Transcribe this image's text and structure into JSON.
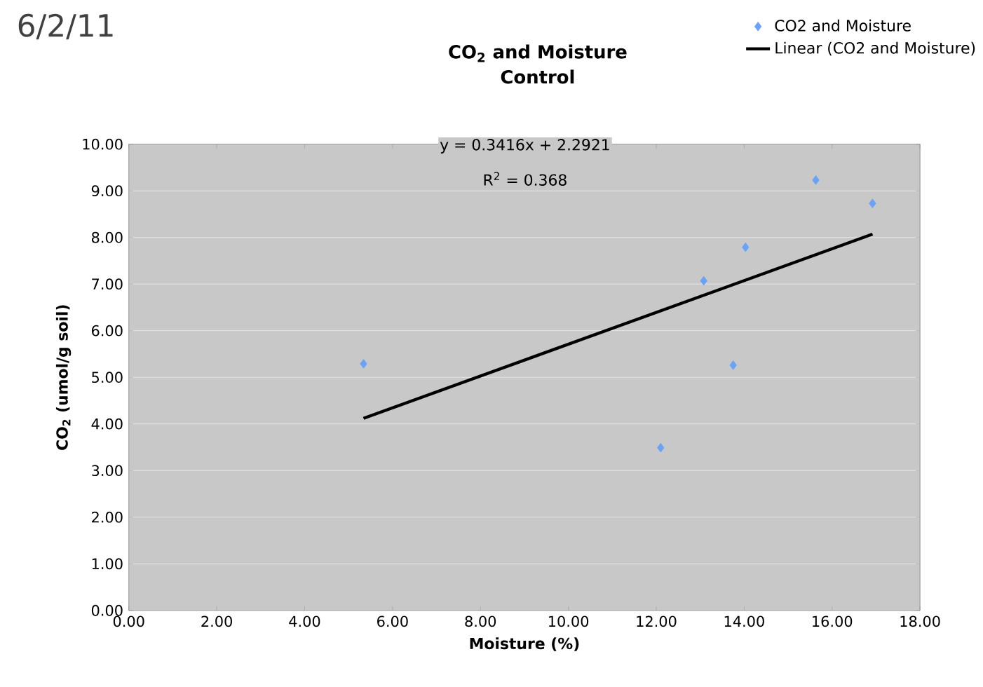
{
  "chart_data": {
    "type": "scatter",
    "title": "CO$_{2}$ and Moisture\nControl",
    "xlabel": "Moisture (%)",
    "ylabel": "CO$_{2}$ (umol/g soil)",
    "annotations": [
      "6/2/11",
      "y = 0.3416x + 2.2921",
      "R$^{2}$ = 0.368"
    ],
    "series": [
      {
        "name": "CO2 and Moisture",
        "marker": "diamond",
        "color": "#6aa2f7",
        "x": [
          5.34,
          12.1,
          13.08,
          13.75,
          14.03,
          15.63,
          16.92
        ],
        "values": [
          5.29,
          3.49,
          7.07,
          5.26,
          7.79,
          9.23,
          8.73
        ]
      },
      {
        "name": "Linear (CO2 and Moisture)",
        "type": "line",
        "marker": "none",
        "color": "#000000",
        "x": [
          5.34,
          16.92
        ],
        "values": [
          4.12,
          8.07
        ]
      }
    ],
    "xlim": [
      0,
      18
    ],
    "ylim": [
      0,
      10
    ],
    "xticks": [
      {
        "value": 0,
        "label": "0.00"
      },
      {
        "value": 2,
        "label": "2.00"
      },
      {
        "value": 4,
        "label": "4.00"
      },
      {
        "value": 6,
        "label": "6.00"
      },
      {
        "value": 8,
        "label": "8.00"
      },
      {
        "value": 10,
        "label": "10.00"
      },
      {
        "value": 12,
        "label": "12.00"
      },
      {
        "value": 14,
        "label": "14.00"
      },
      {
        "value": 16,
        "label": "16.00"
      },
      {
        "value": 18,
        "label": "18.00"
      }
    ],
    "yticks": [
      {
        "value": 0,
        "label": "0.00"
      },
      {
        "value": 1,
        "label": "1.00"
      },
      {
        "value": 2,
        "label": "2.00"
      },
      {
        "value": 3,
        "label": "3.00"
      },
      {
        "value": 4,
        "label": "4.00"
      },
      {
        "value": 5,
        "label": "5.00"
      },
      {
        "value": 6,
        "label": "6.00"
      },
      {
        "value": 7,
        "label": "7.00"
      },
      {
        "value": 8,
        "label": "8.00"
      },
      {
        "value": 9,
        "label": "9.00"
      },
      {
        "value": 10,
        "label": "10.00"
      }
    ],
    "grid": "y",
    "legend": "top right"
  }
}
